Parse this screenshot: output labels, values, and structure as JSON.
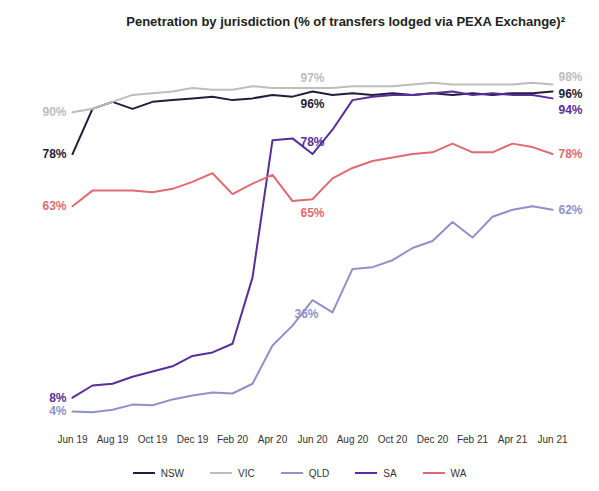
{
  "chart_data": {
    "type": "line",
    "title": "Penetration by jurisdiction (% of transfers lodged via PEXA Exchange)²",
    "categories": [
      "Jun 19",
      null,
      "Aug 19",
      null,
      "Oct 19",
      null,
      "Dec 19",
      null,
      "Feb 20",
      null,
      "Apr 20",
      null,
      "Jun 20",
      null,
      "Aug 20",
      null,
      "Oct 20",
      null,
      "Dec 20",
      null,
      "Feb 21",
      null,
      "Apr 21",
      null,
      "Jun 21"
    ],
    "ylim": [
      0,
      100
    ],
    "grid": false,
    "legend": "bottom",
    "tick_labels": "x",
    "series": [
      {
        "name": "NSW",
        "color": "#241c3c",
        "values": [
          78,
          91,
          93,
          91,
          93,
          93.5,
          94,
          94.5,
          93.5,
          94,
          95,
          94.5,
          96,
          95,
          95.5,
          95,
          95.5,
          95,
          95.5,
          95,
          95.5,
          95,
          95.5,
          95.5,
          96
        ],
        "value_labels": [
          "78%",
          null,
          null,
          null,
          null,
          null,
          null,
          null,
          null,
          null,
          null,
          null,
          "96%",
          null,
          null,
          null,
          null,
          null,
          null,
          null,
          null,
          null,
          null,
          null,
          "96%"
        ]
      },
      {
        "name": "VIC",
        "color": "#bdbdbd",
        "values": [
          90,
          91,
          93,
          95,
          95.5,
          96,
          97,
          96.5,
          96.5,
          97.5,
          97,
          97,
          97,
          97,
          97.5,
          97.5,
          97.5,
          98,
          98.5,
          98,
          98,
          98,
          98,
          98.5,
          98
        ],
        "value_labels": [
          "90%",
          null,
          null,
          null,
          null,
          null,
          null,
          null,
          null,
          null,
          null,
          null,
          "97%",
          null,
          null,
          null,
          null,
          null,
          null,
          null,
          null,
          null,
          null,
          null,
          "98%"
        ]
      },
      {
        "name": "QLD",
        "color": "#8e92c8",
        "values": [
          4,
          3.8,
          4.5,
          6,
          5.8,
          7.5,
          8.6,
          9.5,
          9.2,
          12,
          23,
          28.7,
          36,
          32.5,
          45,
          45.5,
          47.5,
          51,
          53,
          58.5,
          54,
          60,
          62,
          63,
          62
        ],
        "value_labels": [
          "4%",
          null,
          null,
          null,
          null,
          null,
          null,
          null,
          null,
          null,
          null,
          null,
          "36%",
          null,
          null,
          null,
          null,
          null,
          null,
          null,
          null,
          null,
          null,
          null,
          "62%"
        ]
      },
      {
        "name": "SA",
        "color": "#5a2d9c",
        "values": [
          8,
          11.5,
          12,
          14,
          15.5,
          17,
          20,
          21,
          23.5,
          42.5,
          82,
          82.5,
          78,
          85,
          93.5,
          94.5,
          95,
          95,
          95.5,
          96,
          95,
          95.5,
          95,
          95,
          94
        ],
        "value_labels": [
          "8%",
          null,
          null,
          null,
          null,
          null,
          null,
          null,
          null,
          null,
          null,
          null,
          "78%",
          null,
          null,
          null,
          null,
          null,
          null,
          null,
          null,
          null,
          null,
          null,
          "94%"
        ]
      },
      {
        "name": "WA",
        "color": "#e06a72",
        "values": [
          63,
          67.5,
          67.5,
          67.5,
          67,
          68,
          70,
          72.5,
          66.5,
          69.5,
          72,
          64.5,
          65,
          71,
          74,
          76,
          77,
          78,
          78.5,
          81,
          78.5,
          78.5,
          81,
          80,
          78
        ],
        "value_labels": [
          "63%",
          null,
          null,
          null,
          null,
          null,
          null,
          null,
          null,
          null,
          null,
          null,
          "65%",
          null,
          null,
          null,
          null,
          null,
          null,
          null,
          null,
          null,
          null,
          null,
          "78%"
        ]
      }
    ]
  }
}
